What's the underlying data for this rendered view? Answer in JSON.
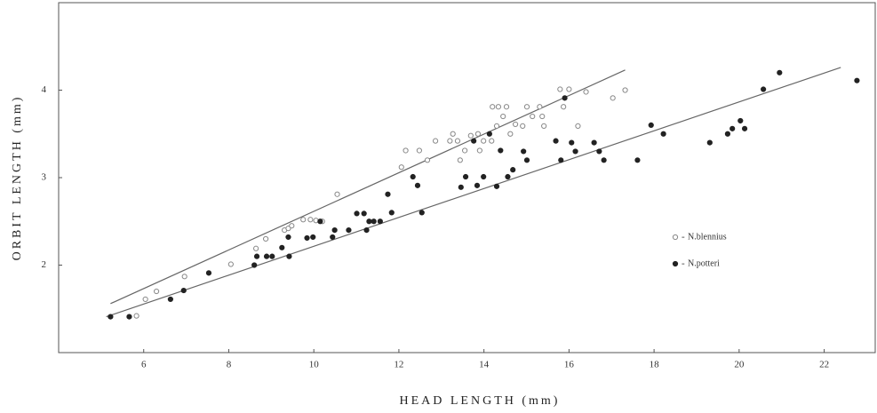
{
  "chart_data": {
    "type": "scatter",
    "x_label": "HEAD LENGTH (mm)",
    "y_label": "ORBIT LENGTH (mm)",
    "xlim": [
      4.0,
      23.2
    ],
    "ylim": [
      1.0,
      5.0
    ],
    "xticks": [
      6,
      8,
      10,
      12,
      14,
      16,
      18,
      20,
      22
    ],
    "yticks": [
      2,
      3,
      4
    ],
    "legend": "right",
    "series": [
      {
        "name": "N.blennius",
        "color": "#888888",
        "marker": "open",
        "x": [
          5.83,
          6.04,
          6.3,
          6.96,
          8.05,
          8.64,
          8.87,
          9.31,
          9.4,
          9.48,
          9.75,
          9.92,
          10.05,
          10.2,
          10.55,
          12.06,
          12.16,
          12.48,
          12.67,
          12.86,
          13.2,
          13.27,
          13.38,
          13.44,
          13.55,
          13.69,
          13.86,
          13.9,
          13.99,
          14.18,
          14.2,
          14.3,
          14.34,
          14.45,
          14.53,
          14.62,
          14.74,
          14.91,
          15.01,
          15.14,
          15.31,
          15.37,
          15.41,
          15.79,
          15.87,
          16.0,
          16.21,
          16.4,
          17.03,
          17.32
        ],
        "values": [
          1.42,
          1.61,
          1.7,
          1.87,
          2.01,
          2.19,
          2.3,
          2.4,
          2.42,
          2.45,
          2.52,
          2.52,
          2.51,
          2.5,
          2.81,
          3.12,
          3.31,
          3.31,
          3.2,
          3.42,
          3.42,
          3.5,
          3.42,
          3.2,
          3.31,
          3.48,
          3.5,
          3.31,
          3.42,
          3.42,
          3.81,
          3.59,
          3.81,
          3.7,
          3.81,
          3.5,
          3.61,
          3.59,
          3.81,
          3.7,
          3.81,
          3.7,
          3.59,
          4.01,
          3.81,
          4.01,
          3.59,
          3.98,
          3.91,
          4.0
        ],
        "fit": {
          "x": [
            5.22,
            17.32
          ],
          "y": [
            1.56,
            4.23
          ]
        }
      },
      {
        "name": "N.potteri",
        "color": "#222222",
        "marker": "filled",
        "x": [
          5.22,
          5.66,
          6.63,
          6.94,
          7.53,
          8.6,
          8.66,
          8.89,
          9.02,
          9.25,
          9.4,
          9.42,
          9.84,
          9.98,
          10.15,
          10.44,
          10.49,
          10.82,
          11.01,
          11.18,
          11.24,
          11.3,
          11.41,
          11.56,
          11.74,
          11.83,
          12.33,
          12.44,
          12.54,
          13.46,
          13.57,
          13.76,
          13.84,
          13.99,
          14.13,
          14.3,
          14.39,
          14.56,
          14.68,
          14.93,
          15.01,
          15.69,
          15.81,
          15.9,
          16.06,
          16.15,
          16.59,
          16.71,
          16.82,
          17.61,
          17.93,
          18.22,
          19.31,
          19.73,
          19.84,
          20.03,
          20.13,
          20.57,
          20.95,
          22.77
        ],
        "values": [
          1.41,
          1.41,
          1.61,
          1.71,
          1.91,
          2.0,
          2.1,
          2.1,
          2.1,
          2.2,
          2.32,
          2.1,
          2.31,
          2.32,
          2.5,
          2.32,
          2.4,
          2.4,
          2.59,
          2.59,
          2.4,
          2.5,
          2.5,
          2.5,
          2.81,
          2.6,
          3.01,
          2.91,
          2.6,
          2.89,
          3.01,
          3.42,
          2.91,
          3.01,
          3.5,
          2.9,
          3.31,
          3.01,
          3.09,
          3.3,
          3.2,
          3.42,
          3.2,
          3.91,
          3.4,
          3.3,
          3.4,
          3.3,
          3.2,
          3.2,
          3.6,
          3.5,
          3.4,
          3.5,
          3.56,
          3.65,
          3.56,
          4.01,
          4.2,
          4.11
        ],
        "fit": {
          "x": [
            5.12,
            22.39
          ],
          "y": [
            1.41,
            4.26
          ]
        }
      }
    ]
  }
}
